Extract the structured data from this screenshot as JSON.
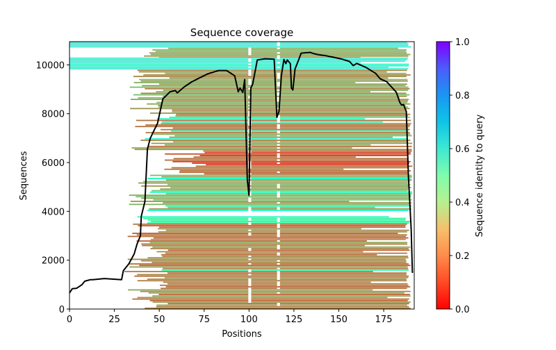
{
  "chart_data": {
    "type": "line",
    "title": "Sequence coverage",
    "xlabel": "Positions",
    "ylabel": "Sequences",
    "xlim": [
      0,
      192
    ],
    "ylim": [
      0,
      10950
    ],
    "grid": false,
    "x_ticks": [
      0,
      25,
      50,
      75,
      100,
      125,
      150,
      175
    ],
    "x_tick_labels": [
      "0",
      "25",
      "50",
      "75",
      "100",
      "125",
      "150",
      "175"
    ],
    "y_ticks": [
      0,
      2000,
      4000,
      6000,
      8000,
      10000
    ],
    "y_tick_labels": [
      "0",
      "2000",
      "4000",
      "6000",
      "8000",
      "10000"
    ],
    "series": [
      {
        "name": "coverage",
        "color": "#000000",
        "x": [
          0,
          1.5,
          4,
          7,
          8.5,
          11.6,
          13,
          19.4,
          29,
          30,
          33,
          36,
          37.6,
          39.5,
          40,
          42,
          43.4,
          45,
          47,
          49,
          52,
          56,
          59,
          60,
          64,
          68,
          72,
          77,
          83,
          87.5,
          92,
          94,
          95,
          96.5,
          97.6,
          99,
          100,
          101,
          102,
          104.6,
          109,
          114,
          115.5,
          116.7,
          118,
          119.4,
          120.5,
          121.3,
          123,
          123.6,
          124.4,
          125.6,
          128,
          129,
          134,
          137.6,
          143,
          151,
          156,
          158,
          160,
          165,
          170.5,
          173,
          176.7,
          182,
          184,
          185,
          186,
          187.6,
          188.8,
          190.3,
          191
        ],
        "y": [
          655,
          830,
          850,
          1000,
          1140,
          1200,
          1200,
          1250,
          1200,
          1570,
          1850,
          2250,
          2650,
          3000,
          3800,
          4400,
          6550,
          7000,
          7300,
          7600,
          8600,
          8900,
          8950,
          8850,
          9100,
          9300,
          9450,
          9630,
          9770,
          9770,
          9550,
          8900,
          9050,
          8870,
          9400,
          5300,
          4650,
          9050,
          9200,
          10200,
          10250,
          10230,
          7850,
          8100,
          9550,
          10220,
          10050,
          10200,
          10050,
          9050,
          8970,
          9830,
          10280,
          10480,
          10510,
          10430,
          10370,
          10250,
          10140,
          9970,
          10060,
          9900,
          9650,
          9430,
          9310,
          8880,
          8460,
          8350,
          8380,
          8090,
          5400,
          3280,
          1480
        ]
      }
    ],
    "heatmap_background": {
      "description": "Each sequence drawn as horizontal segment colored by identity to query",
      "colormap": "rainbow_r",
      "row_groups": [
        {
          "seq_range": [
            10700,
            10950
          ],
          "identity": 0.62,
          "start": 0,
          "end": 191
        },
        {
          "seq_range": [
            10300,
            10700
          ],
          "identity": 0.25,
          "start": 42,
          "end": 190
        },
        {
          "seq_range": [
            9800,
            10300
          ],
          "identity": 0.6,
          "start": 0,
          "end": 190
        },
        {
          "seq_range": [
            8000,
            9800
          ],
          "identity": 0.22,
          "start": 40,
          "end": 190
        },
        {
          "seq_range": [
            6500,
            8000
          ],
          "identity": 0.2,
          "start": 42,
          "end": 191
        },
        {
          "seq_range": [
            5500,
            6500
          ],
          "identity": 0.1,
          "start": 60,
          "end": 191
        },
        {
          "seq_range": [
            4000,
            5500
          ],
          "identity": 0.25,
          "start": 40,
          "end": 191
        },
        {
          "seq_range": [
            3500,
            3800
          ],
          "identity": 0.42,
          "start": 41,
          "end": 190
        },
        {
          "seq_range": [
            0,
            3500
          ],
          "identity": 0.17,
          "start": 38,
          "end": 190
        }
      ],
      "gaps_at_positions": [
        100,
        116
      ]
    },
    "colorbar": {
      "label": "Sequence identity to query",
      "range": [
        0,
        1
      ],
      "ticks": [
        0.0,
        0.2,
        0.4,
        0.6,
        0.8,
        1.0
      ],
      "tick_labels": [
        "0.0",
        "0.2",
        "0.4",
        "0.6",
        "0.8",
        "1.0"
      ]
    }
  }
}
